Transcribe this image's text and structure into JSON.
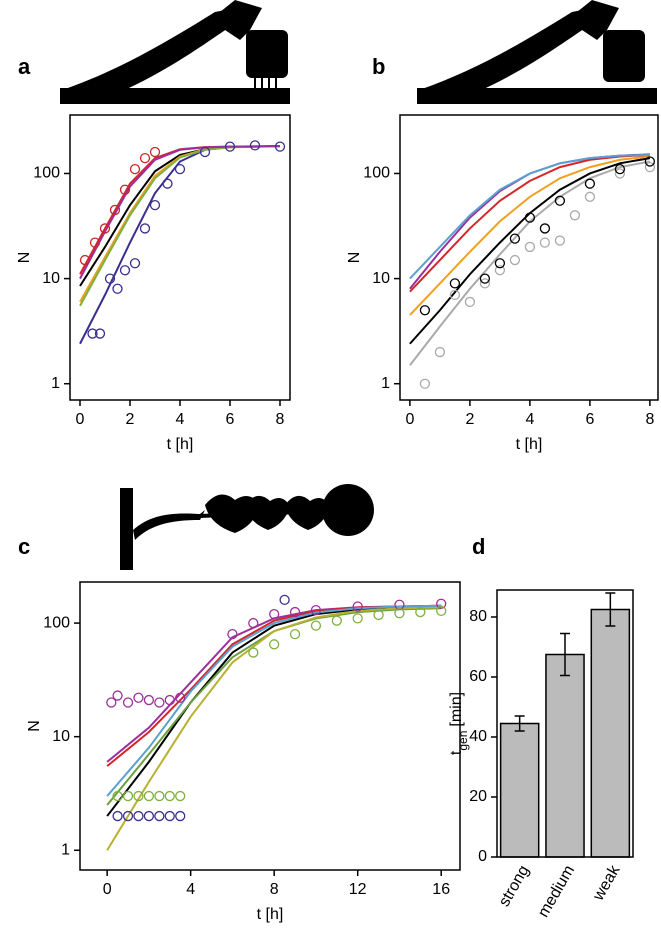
{
  "chart_data": [
    {
      "type": "line",
      "label": "a",
      "xlabel": "t [h]",
      "ylabel": "N",
      "log_y": true,
      "xlim": [
        -0.4,
        8.4
      ],
      "ylim": [
        0.7,
        360
      ],
      "xticks": [
        0,
        2,
        4,
        6,
        8
      ],
      "yticks": [
        1,
        10,
        100
      ],
      "x": [
        0,
        1,
        2,
        3,
        4,
        5,
        6,
        7,
        8
      ],
      "series": [
        {
          "color": "#000000",
          "values": [
            8.5,
            20,
            50,
            105,
            150,
            170,
            178,
            180,
            182
          ]
        },
        {
          "color": "#3a2f8f",
          "values": [
            2.4,
            7,
            22,
            65,
            130,
            168,
            178,
            180,
            182
          ]
        },
        {
          "color": "#d62728",
          "values": [
            11,
            30,
            80,
            140,
            170,
            178,
            180,
            181,
            182
          ]
        },
        {
          "color": "#f0a020",
          "values": [
            6,
            16,
            42,
            95,
            145,
            170,
            178,
            180,
            181
          ]
        },
        {
          "color": "#7fb040",
          "values": [
            5.5,
            15,
            40,
            90,
            142,
            168,
            177,
            180,
            181
          ]
        },
        {
          "color": "#9c2f9c",
          "values": [
            10,
            28,
            75,
            135,
            168,
            177,
            180,
            181,
            182
          ]
        },
        {
          "color": "#3a2f8f",
          "mode": "points",
          "x": [
            0.5,
            0.8,
            1.2,
            1.5,
            1.8,
            2.2,
            2.6,
            3,
            3.5,
            4,
            5,
            6,
            7,
            8
          ],
          "values": [
            3,
            3,
            10,
            8,
            12,
            14,
            30,
            50,
            80,
            110,
            160,
            180,
            185,
            180
          ]
        },
        {
          "color": "#c62828",
          "mode": "points",
          "x": [
            0.2,
            0.6,
            1,
            1.4,
            1.8,
            2.2,
            2.6,
            3
          ],
          "values": [
            15,
            22,
            30,
            45,
            70,
            110,
            140,
            160
          ]
        }
      ]
    },
    {
      "type": "line",
      "label": "b",
      "xlabel": "t [h]",
      "ylabel": "N",
      "log_y": true,
      "xlim": [
        -0.33,
        8.27
      ],
      "ylim": [
        0.7,
        360
      ],
      "xticks": [
        0,
        2,
        4,
        6,
        8
      ],
      "yticks": [
        1,
        10,
        100
      ],
      "x": [
        0,
        1,
        2,
        3,
        4,
        5,
        6,
        7,
        8
      ],
      "series": [
        {
          "color": "#000000",
          "values": [
            2.4,
            5,
            11,
            22,
            42,
            70,
            100,
            125,
            140
          ]
        },
        {
          "color": "#aaaaaa",
          "values": [
            1.5,
            3.5,
            8,
            17,
            35,
            60,
            90,
            115,
            130
          ]
        },
        {
          "color": "#f0a020",
          "values": [
            4.5,
            9,
            18,
            35,
            60,
            90,
            115,
            135,
            145
          ]
        },
        {
          "color": "#d62728",
          "values": [
            7.5,
            15,
            30,
            55,
            85,
            115,
            135,
            145,
            150
          ]
        },
        {
          "color": "#9c2f9c",
          "values": [
            8,
            18,
            38,
            68,
            100,
            125,
            140,
            148,
            152
          ]
        },
        {
          "color": "#5aa0d0",
          "values": [
            10,
            20,
            40,
            70,
            100,
            125,
            140,
            148,
            150
          ]
        },
        {
          "color": "#aaaaaa",
          "mode": "points",
          "x": [
            0.5,
            1,
            1.5,
            2,
            2.5,
            3,
            3.5,
            4,
            4.5,
            5,
            5.5,
            6,
            7,
            8
          ],
          "values": [
            1,
            2,
            7,
            6,
            9,
            12,
            15,
            20,
            22,
            23,
            40,
            60,
            100,
            115
          ]
        },
        {
          "color": "#000000",
          "mode": "points",
          "x": [
            0.5,
            1.5,
            2.5,
            3,
            3.5,
            4,
            4.5,
            5,
            6,
            7,
            8
          ],
          "values": [
            5,
            9,
            10,
            14,
            24,
            38,
            30,
            55,
            80,
            110,
            130
          ]
        }
      ]
    },
    {
      "type": "line",
      "label": "c",
      "xlabel": "t [h]",
      "ylabel": "N",
      "log_y": true,
      "xlim": [
        -1.3,
        16.9
      ],
      "ylim": [
        0.67,
        230
      ],
      "xticks": [
        0,
        4,
        8,
        12,
        16
      ],
      "yticks": [
        1,
        10,
        100
      ],
      "x": [
        0,
        2,
        4,
        6,
        8,
        10,
        12,
        14,
        16
      ],
      "series": [
        {
          "color": "#9c2f9c",
          "values": [
            6,
            12,
            30,
            75,
            110,
            130,
            138,
            140,
            142
          ]
        },
        {
          "color": "#000000",
          "values": [
            2,
            6,
            20,
            55,
            95,
            120,
            132,
            138,
            140
          ]
        },
        {
          "color": "#d62728",
          "values": [
            5.5,
            11,
            26,
            65,
            105,
            128,
            137,
            140,
            142
          ]
        },
        {
          "color": "#6aa040",
          "values": [
            2.5,
            7,
            20,
            50,
            85,
            110,
            125,
            132,
            135
          ]
        },
        {
          "color": "#b8b030",
          "values": [
            1,
            4,
            15,
            45,
            85,
            112,
            128,
            135,
            138
          ]
        },
        {
          "color": "#5aa0d0",
          "values": [
            3,
            8,
            25,
            62,
            100,
            124,
            135,
            140,
            142
          ]
        },
        {
          "color": "#9c2f9c",
          "mode": "points",
          "x": [
            0.2,
            0.5,
            1,
            1.5,
            2,
            2.5,
            3,
            3.5,
            6,
            7,
            8,
            9,
            10,
            12,
            14,
            16
          ],
          "values": [
            20,
            23,
            20,
            22,
            21,
            20,
            21,
            22,
            80,
            100,
            120,
            125,
            130,
            140,
            145,
            148
          ]
        },
        {
          "color": "#7fb040",
          "mode": "points",
          "x": [
            0.5,
            1,
            1.5,
            2,
            2.5,
            3,
            3.5,
            7,
            8,
            9,
            10,
            11,
            12,
            13,
            14,
            15,
            16
          ],
          "values": [
            3,
            3,
            3,
            3,
            3,
            3,
            3,
            55,
            65,
            80,
            95,
            105,
            110,
            118,
            122,
            125,
            128
          ]
        },
        {
          "color": "#3a2f8f",
          "mode": "points",
          "x": [
            0.5,
            1,
            1.5,
            2,
            2.5,
            3,
            3.5,
            8.5
          ],
          "values": [
            2,
            2,
            2,
            2,
            2,
            2,
            2,
            160
          ]
        }
      ]
    },
    {
      "type": "bar",
      "label": "d",
      "ylabel": {
        "main": "t",
        "sub": "gen",
        "unit": "[min]"
      },
      "categories": [
        "strong",
        "medium",
        "weak"
      ],
      "values": [
        44.5,
        67.5,
        82.5
      ],
      "errors": [
        2.5,
        7,
        5.5
      ],
      "color": "#bbbbbb",
      "ylim": [
        0,
        89
      ],
      "yticks": [
        0,
        20,
        40,
        60,
        80
      ]
    }
  ]
}
